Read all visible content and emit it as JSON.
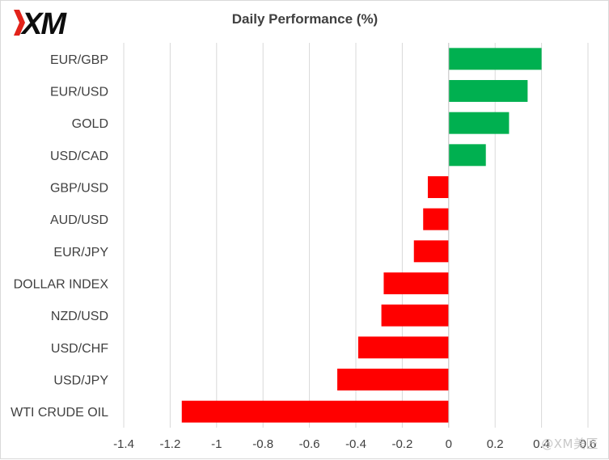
{
  "brand": {
    "logo_text": "XM",
    "colors": {
      "logo": "#0d0d0d",
      "logo_accent": "#e2231a"
    }
  },
  "watermark": {
    "text": "@XM美匠"
  },
  "chart_data": {
    "type": "bar",
    "orientation": "horizontal",
    "title": "Daily Performance (%)",
    "xlabel": "",
    "ylabel": "",
    "xlim": [
      -1.4,
      0.6
    ],
    "xticks": [
      -1.4,
      -1.2,
      -1,
      -0.8,
      -0.6,
      -0.4,
      -0.2,
      0,
      0.2,
      0.4,
      0.6
    ],
    "xtick_labels": [
      "-1.4",
      "-1.2",
      "-1",
      "-0.8",
      "-0.6",
      "-0.4",
      "-0.2",
      "0",
      "0.2",
      "0.4",
      "0.6"
    ],
    "grid": "vertical",
    "legend": "none",
    "categories": [
      "EUR/GBP",
      "EUR/USD",
      "GOLD",
      "USD/CAD",
      "GBP/USD",
      "AUD/USD",
      "EUR/JPY",
      "DOLLAR INDEX",
      "NZD/USD",
      "USD/CHF",
      "USD/JPY",
      "WTI CRUDE OIL"
    ],
    "values": [
      0.4,
      0.34,
      0.26,
      0.16,
      -0.09,
      -0.11,
      -0.15,
      -0.28,
      -0.29,
      -0.39,
      -0.48,
      -1.15
    ],
    "colors": {
      "positive": "#00b050",
      "negative": "#ff0000",
      "grid": "#d9d9d9",
      "axis": "#bfbfbf",
      "text": "#404040"
    }
  }
}
